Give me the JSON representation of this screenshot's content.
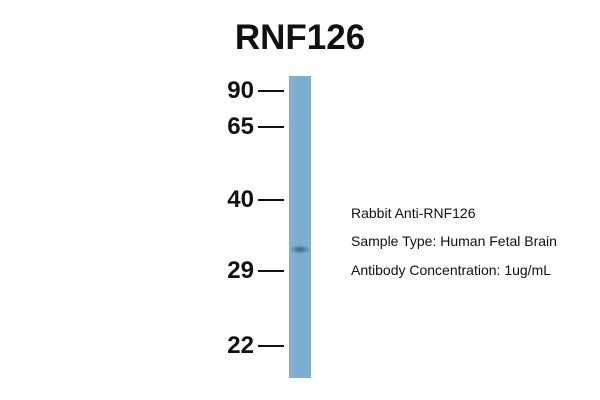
{
  "title": "RNF126",
  "markers": [
    {
      "label": "90"
    },
    {
      "label": "65"
    },
    {
      "label": "40"
    },
    {
      "label": "29"
    },
    {
      "label": "22"
    }
  ],
  "info": {
    "antibody": "Rabbit Anti-RNF126",
    "sample": "Sample Type: Human Fetal Brain",
    "concentration": "Antibody Concentration: 1ug/mL"
  },
  "colors": {
    "lane": "#7fb0d2",
    "band": "#3a5a78"
  }
}
